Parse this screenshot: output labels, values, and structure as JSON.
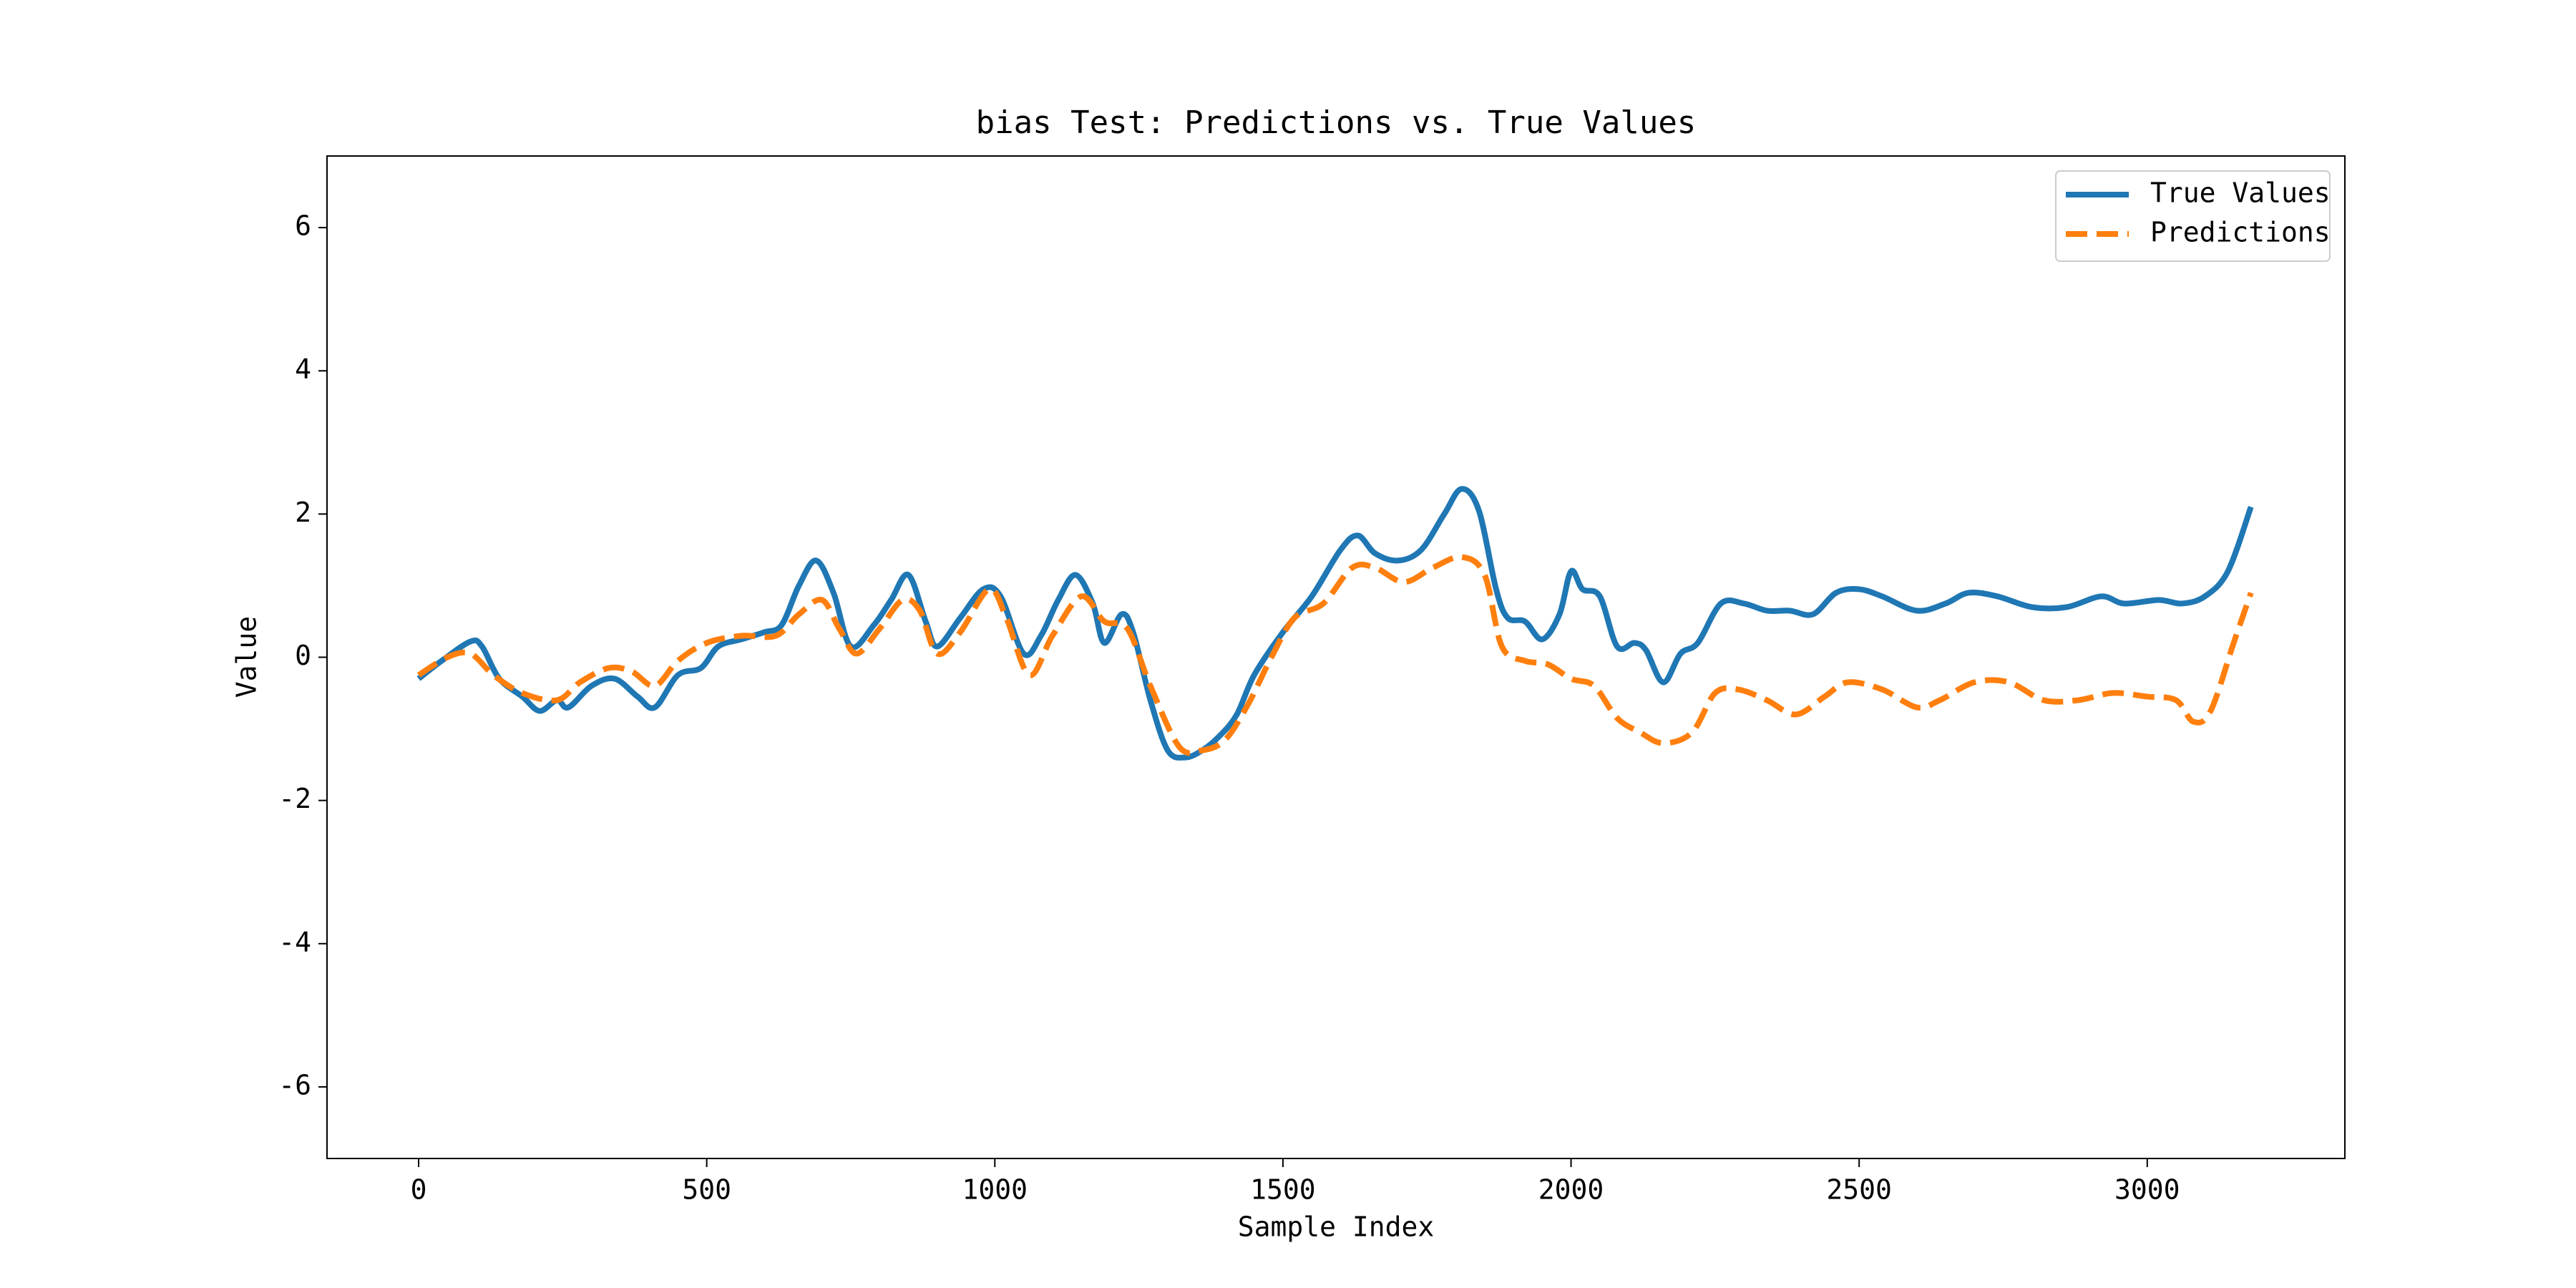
{
  "chart_data": {
    "type": "line",
    "title": "bias Test: Predictions vs. True Values",
    "x_label": "Sample Index",
    "y_label": "Value",
    "xlim": [
      -159,
      3343
    ],
    "ylim": [
      -7,
      7
    ],
    "xticks": [
      0,
      500,
      1000,
      1500,
      2000,
      2500,
      3000
    ],
    "yticks": [
      -6,
      -4,
      -2,
      0,
      2,
      4,
      6
    ],
    "legend": "upper right",
    "series": [
      {
        "name": "True Values",
        "color": "#1f77b4",
        "style": "solid",
        "x": [
          0,
          40,
          90,
          110,
          140,
          180,
          210,
          240,
          260,
          300,
          340,
          380,
          410,
          450,
          490,
          520,
          560,
          600,
          630,
          660,
          690,
          720,
          750,
          790,
          820,
          850,
          880,
          900,
          940,
          980,
          1010,
          1050,
          1080,
          1110,
          1140,
          1170,
          1190,
          1220,
          1240,
          1270,
          1300,
          1330,
          1360,
          1390,
          1420,
          1450,
          1500,
          1550,
          1600,
          1630,
          1660,
          1700,
          1740,
          1780,
          1810,
          1840,
          1870,
          1890,
          1920,
          1950,
          1980,
          2000,
          2020,
          2050,
          2080,
          2110,
          2130,
          2160,
          2190,
          2220,
          2260,
          2300,
          2340,
          2380,
          2420,
          2460,
          2500,
          2540,
          2600,
          2650,
          2690,
          2740,
          2800,
          2860,
          2920,
          2960,
          3020,
          3060,
          3100,
          3140,
          3180
        ],
        "values": [
          -0.3,
          -0.05,
          0.22,
          0.15,
          -0.3,
          -0.55,
          -0.75,
          -0.6,
          -0.7,
          -0.4,
          -0.3,
          -0.55,
          -0.7,
          -0.25,
          -0.15,
          0.15,
          0.25,
          0.35,
          0.45,
          1.0,
          1.35,
          0.9,
          0.15,
          0.45,
          0.8,
          1.15,
          0.5,
          0.15,
          0.55,
          0.95,
          0.85,
          0.05,
          0.3,
          0.8,
          1.15,
          0.75,
          0.2,
          0.6,
          0.35,
          -0.6,
          -1.3,
          -1.4,
          -1.3,
          -1.1,
          -0.8,
          -0.25,
          0.35,
          0.85,
          1.5,
          1.7,
          1.45,
          1.35,
          1.5,
          2.0,
          2.35,
          2.05,
          0.95,
          0.55,
          0.5,
          0.25,
          0.6,
          1.2,
          0.95,
          0.85,
          0.15,
          0.2,
          0.1,
          -0.35,
          0.05,
          0.2,
          0.75,
          0.75,
          0.65,
          0.65,
          0.6,
          0.9,
          0.95,
          0.85,
          0.65,
          0.75,
          0.9,
          0.85,
          0.7,
          0.7,
          0.85,
          0.75,
          0.8,
          0.75,
          0.85,
          1.2,
          2.1
        ]
      },
      {
        "name": "Predictions",
        "color": "#ff7f0e",
        "style": "dashed",
        "x": [
          0,
          50,
          90,
          130,
          180,
          240,
          280,
          330,
          370,
          410,
          450,
          500,
          560,
          620,
          660,
          700,
          730,
          760,
          800,
          840,
          870,
          900,
          940,
          990,
          1020,
          1060,
          1100,
          1150,
          1190,
          1230,
          1270,
          1320,
          1360,
          1400,
          1440,
          1480,
          1520,
          1570,
          1620,
          1660,
          1710,
          1760,
          1810,
          1850,
          1880,
          1920,
          1960,
          2000,
          2040,
          2080,
          2120,
          2160,
          2210,
          2250,
          2290,
          2340,
          2390,
          2440,
          2480,
          2540,
          2600,
          2640,
          2700,
          2760,
          2820,
          2880,
          2940,
          3000,
          3050,
          3080,
          3110,
          3150,
          3180
        ],
        "values": [
          -0.25,
          0.0,
          0.05,
          -0.25,
          -0.5,
          -0.6,
          -0.35,
          -0.15,
          -0.2,
          -0.4,
          -0.05,
          0.2,
          0.3,
          0.3,
          0.6,
          0.8,
          0.4,
          0.05,
          0.4,
          0.8,
          0.65,
          0.05,
          0.35,
          0.95,
          0.55,
          -0.25,
          0.3,
          0.85,
          0.5,
          0.4,
          -0.4,
          -1.25,
          -1.3,
          -1.15,
          -0.65,
          0.0,
          0.55,
          0.75,
          1.25,
          1.25,
          1.05,
          1.25,
          1.4,
          1.15,
          0.15,
          -0.05,
          -0.1,
          -0.3,
          -0.4,
          -0.85,
          -1.05,
          -1.2,
          -1.05,
          -0.5,
          -0.45,
          -0.6,
          -0.8,
          -0.55,
          -0.35,
          -0.45,
          -0.7,
          -0.6,
          -0.35,
          -0.35,
          -0.6,
          -0.6,
          -0.5,
          -0.55,
          -0.6,
          -0.9,
          -0.75,
          0.2,
          0.9
        ]
      }
    ]
  }
}
